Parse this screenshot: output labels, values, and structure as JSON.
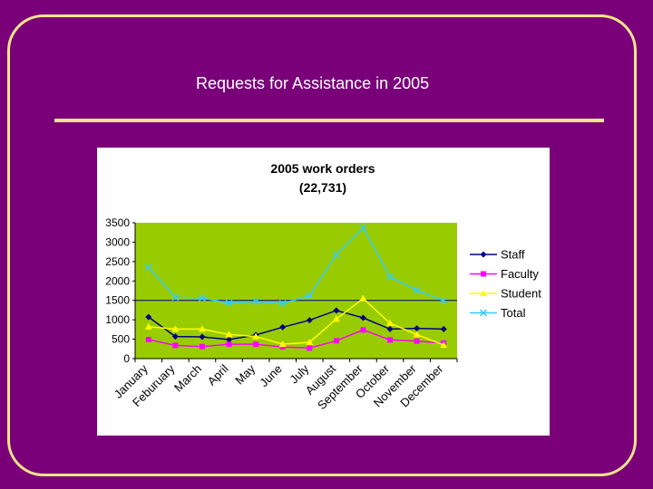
{
  "slide": {
    "title": "Requests for Assistance in 2005",
    "colors": {
      "background": "#7a007a",
      "accent": "#f5e58a",
      "plot_area": "#99cc00"
    }
  },
  "chart_data": {
    "type": "line",
    "title": "2005 work orders",
    "subtitle": "(22,731)",
    "xlabel": "",
    "ylabel": "",
    "ylim": [
      0,
      3500
    ],
    "yticks": [
      0,
      500,
      1000,
      1500,
      2000,
      2500,
      3000,
      3500
    ],
    "grid": "horizontal line at 1500",
    "legend_position": "right",
    "categories": [
      "January",
      "Feburuary",
      "March",
      "April",
      "May",
      "June",
      "July",
      "August",
      "September",
      "October",
      "November",
      "December"
    ],
    "series": [
      {
        "name": "Staff",
        "color": "#000080",
        "marker": "diamond",
        "values": [
          1070,
          570,
          560,
          490,
          610,
          810,
          990,
          1240,
          1050,
          760,
          780,
          760
        ]
      },
      {
        "name": "Faculty",
        "color": "#ff00ff",
        "marker": "square",
        "values": [
          490,
          340,
          310,
          370,
          370,
          300,
          270,
          460,
          740,
          480,
          450,
          400
        ]
      },
      {
        "name": "Student",
        "color": "#ffff00",
        "marker": "triangle",
        "values": [
          820,
          760,
          760,
          620,
          570,
          370,
          420,
          1020,
          1550,
          910,
          620,
          350
        ]
      },
      {
        "name": "Total",
        "color": "#33ccff",
        "marker": "x",
        "values": [
          2350,
          1580,
          1560,
          1430,
          1470,
          1420,
          1620,
          2680,
          3370,
          2110,
          1760,
          1490
        ]
      }
    ]
  }
}
